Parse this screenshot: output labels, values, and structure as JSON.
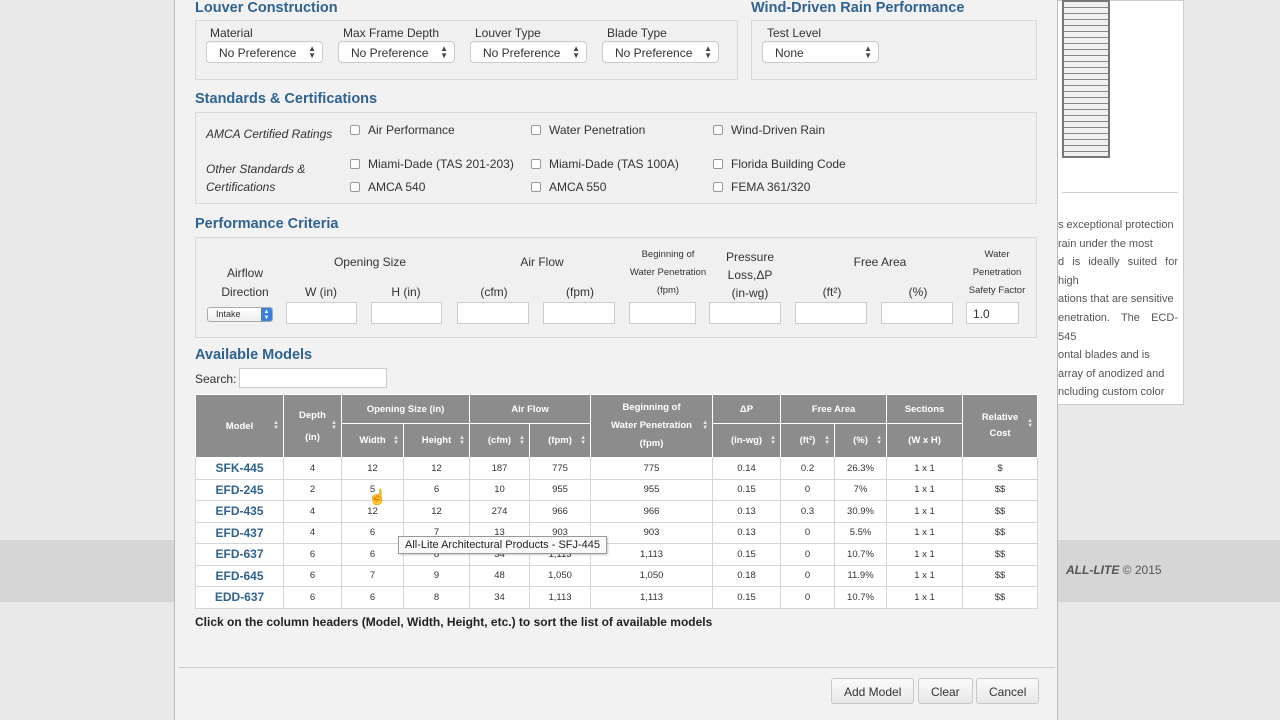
{
  "background": {
    "description_lines": [
      "s exceptional protection",
      "rain under the most",
      "d is ideally suited for high",
      "ations that are sensitive",
      "enetration. The ECD-545",
      "ontal blades and is",
      "array of anodized and",
      "ncluding custom color"
    ],
    "brand": "ALL-LITE",
    "copyright": "© 2015"
  },
  "louver_construction": {
    "title": "Louver Construction",
    "fields": [
      {
        "label": "Material",
        "value": "No Preference"
      },
      {
        "label": "Max Frame Depth",
        "value": "No Preference"
      },
      {
        "label": "Louver Type",
        "value": "No Preference"
      },
      {
        "label": "Blade Type",
        "value": "No Preference"
      }
    ]
  },
  "wind_driven": {
    "title": "Wind-Driven Rain Performance",
    "label": "Test Level",
    "value": "None"
  },
  "standards": {
    "title": "Standards & Certifications",
    "amca_label": "AMCA Certified Ratings",
    "other_label_1": "Other Standards &",
    "other_label_2": "Certifications",
    "amca": [
      "Air Performance",
      "Water Penetration",
      "Wind-Driven Rain"
    ],
    "other_row1": [
      "Miami-Dade (TAS 201-203)",
      "Miami-Dade (TAS 100A)",
      "Florida Building Code"
    ],
    "other_row2": [
      "AMCA 540",
      "AMCA 550",
      "FEMA 361/320"
    ]
  },
  "performance": {
    "title": "Performance Criteria",
    "airflow1": "Airflow",
    "airflow2": "Direction",
    "airflow_value": "Intake",
    "opening_size": "Opening Size",
    "w": "W (in)",
    "h": "H (in)",
    "air_flow": "Air Flow",
    "cfm": "(cfm)",
    "fpm": "(fpm)",
    "bwp1": "Beginning of",
    "bwp2": "Water Penetration",
    "bwp3": "(fpm)",
    "pl1": "Pressure",
    "pl2": "Loss,ΔP",
    "pl3": "(in-wg)",
    "free_area": "Free Area",
    "ft2": "(ft²)",
    "pct": "(%)",
    "wp1": "Water",
    "wp2": "Penetration",
    "wp3": "Safety Factor",
    "safety_value": "1.0"
  },
  "models": {
    "title": "Available Models",
    "search_label": "Search:",
    "search_value": "",
    "headers": {
      "model": "Model",
      "depth": "Depth",
      "depth_unit": "(in)",
      "opening": "Opening Size (in)",
      "width": "Width",
      "height": "Height",
      "airflow": "Air Flow",
      "cfm": "(cfm)",
      "fpm": "(fpm)",
      "bwp1": "Beginning of",
      "bwp2": "Water Penetration",
      "bwp3": "(fpm)",
      "dp": "ΔP",
      "dp_unit": "(in-wg)",
      "free_area": "Free Area",
      "ft2": "(ft²)",
      "pct": "(%)",
      "sections": "Sections",
      "sections_unit": "(W x H)",
      "cost1": "Relative",
      "cost2": "Cost"
    },
    "rows": [
      [
        "SFK-445",
        "4",
        "12",
        "12",
        "187",
        "775",
        "775",
        "0.14",
        "0.2",
        "26.3%",
        "1 x 1",
        "$"
      ],
      [
        "EFD-245",
        "2",
        "5",
        "6",
        "10",
        "955",
        "955",
        "0.15",
        "0",
        "7%",
        "1 x 1",
        "$$"
      ],
      [
        "EFD-435",
        "4",
        "12",
        "12",
        "274",
        "966",
        "966",
        "0.13",
        "0.3",
        "30.9%",
        "1 x 1",
        "$$"
      ],
      [
        "EFD-437",
        "4",
        "6",
        "7",
        "13",
        "903",
        "903",
        "0.13",
        "0",
        "5.5%",
        "1 x 1",
        "$$"
      ],
      [
        "EFD-637",
        "6",
        "6",
        "8",
        "34",
        "1,113",
        "1,113",
        "0.15",
        "0",
        "10.7%",
        "1 x 1",
        "$$"
      ],
      [
        "EFD-645",
        "6",
        "7",
        "9",
        "48",
        "1,050",
        "1,050",
        "0.18",
        "0",
        "11.9%",
        "1 x 1",
        "$$"
      ],
      [
        "EDD-637",
        "6",
        "6",
        "8",
        "34",
        "1,113",
        "1,113",
        "0.15",
        "0",
        "10.7%",
        "1 x 1",
        "$$"
      ]
    ],
    "hint": "Click on the column headers (Model, Width, Height, etc.) to sort the list of available models",
    "tooltip": "All-Lite Architectural Products - SFJ-445"
  },
  "buttons": {
    "add": "Add Model",
    "clear": "Clear",
    "cancel": "Cancel"
  }
}
